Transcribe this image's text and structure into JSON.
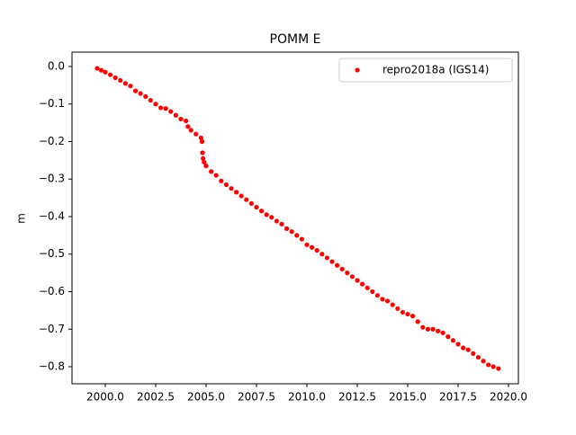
{
  "chart_data": {
    "type": "scatter",
    "title": "POMM E",
    "y_label": "m",
    "legend_position": "upper right",
    "xlim": [
      1998.35,
      2020.49
    ],
    "ylim": [
      -0.8455,
      0.0383
    ],
    "xticks": [
      {
        "value": 2000.0,
        "label": "2000.0"
      },
      {
        "value": 2002.5,
        "label": "2002.5"
      },
      {
        "value": 2005.0,
        "label": "2005.0"
      },
      {
        "value": 2007.5,
        "label": "2007.5"
      },
      {
        "value": 2010.0,
        "label": "2010.0"
      },
      {
        "value": 2012.5,
        "label": "2012.5"
      },
      {
        "value": 2015.0,
        "label": "2015.0"
      },
      {
        "value": 2017.5,
        "label": "2017.5"
      },
      {
        "value": 2020.0,
        "label": "2020.0"
      }
    ],
    "yticks": [
      {
        "value": 0.0,
        "label": "0.0"
      },
      {
        "value": -0.1,
        "label": "−0.1"
      },
      {
        "value": -0.2,
        "label": "−0.2"
      },
      {
        "value": -0.3,
        "label": "−0.3"
      },
      {
        "value": -0.4,
        "label": "−0.4"
      },
      {
        "value": -0.5,
        "label": "−0.5"
      },
      {
        "value": -0.6,
        "label": "−0.6"
      },
      {
        "value": -0.7,
        "label": "−0.7"
      },
      {
        "value": -0.8,
        "label": "−0.8"
      }
    ],
    "series": [
      {
        "name": "repro2018a (IGS14)",
        "color": "#ff0000",
        "x": [
          1999.6,
          1999.8,
          2000.0,
          2000.25,
          2000.5,
          2000.75,
          2001.0,
          2001.25,
          2001.5,
          2001.75,
          2002.0,
          2002.25,
          2002.5,
          2002.75,
          2003.0,
          2003.25,
          2003.5,
          2003.75,
          2004.0,
          2004.1,
          2004.25,
          2004.5,
          2004.75,
          2004.8,
          2004.82,
          2004.85,
          2004.9,
          2005.0,
          2005.25,
          2005.5,
          2005.75,
          2006.0,
          2006.25,
          2006.5,
          2006.75,
          2007.0,
          2007.25,
          2007.5,
          2007.75,
          2008.0,
          2008.25,
          2008.5,
          2008.75,
          2009.0,
          2009.25,
          2009.5,
          2009.75,
          2010.0,
          2010.25,
          2010.5,
          2010.75,
          2011.0,
          2011.25,
          2011.5,
          2011.75,
          2012.0,
          2012.25,
          2012.5,
          2012.75,
          2013.0,
          2013.25,
          2013.5,
          2013.75,
          2014.0,
          2014.25,
          2014.5,
          2014.75,
          2015.0,
          2015.25,
          2015.5,
          2015.75,
          2016.0,
          2016.25,
          2016.5,
          2016.75,
          2017.0,
          2017.25,
          2017.5,
          2017.75,
          2018.0,
          2018.25,
          2018.5,
          2018.75,
          2019.0,
          2019.25,
          2019.5
        ],
        "values": [
          -0.005,
          -0.01,
          -0.015,
          -0.022,
          -0.03,
          -0.037,
          -0.045,
          -0.052,
          -0.065,
          -0.072,
          -0.08,
          -0.09,
          -0.1,
          -0.11,
          -0.112,
          -0.12,
          -0.13,
          -0.14,
          -0.145,
          -0.16,
          -0.17,
          -0.18,
          -0.19,
          -0.2,
          -0.23,
          -0.245,
          -0.255,
          -0.265,
          -0.28,
          -0.29,
          -0.305,
          -0.315,
          -0.325,
          -0.335,
          -0.345,
          -0.355,
          -0.365,
          -0.375,
          -0.385,
          -0.395,
          -0.402,
          -0.412,
          -0.42,
          -0.432,
          -0.44,
          -0.45,
          -0.46,
          -0.475,
          -0.482,
          -0.49,
          -0.5,
          -0.51,
          -0.52,
          -0.53,
          -0.54,
          -0.55,
          -0.56,
          -0.57,
          -0.58,
          -0.59,
          -0.6,
          -0.61,
          -0.62,
          -0.625,
          -0.635,
          -0.645,
          -0.655,
          -0.66,
          -0.665,
          -0.68,
          -0.695,
          -0.7,
          -0.7,
          -0.705,
          -0.71,
          -0.72,
          -0.73,
          -0.74,
          -0.75,
          -0.755,
          -0.765,
          -0.775,
          -0.785,
          -0.795,
          -0.8,
          -0.805
        ]
      }
    ]
  }
}
